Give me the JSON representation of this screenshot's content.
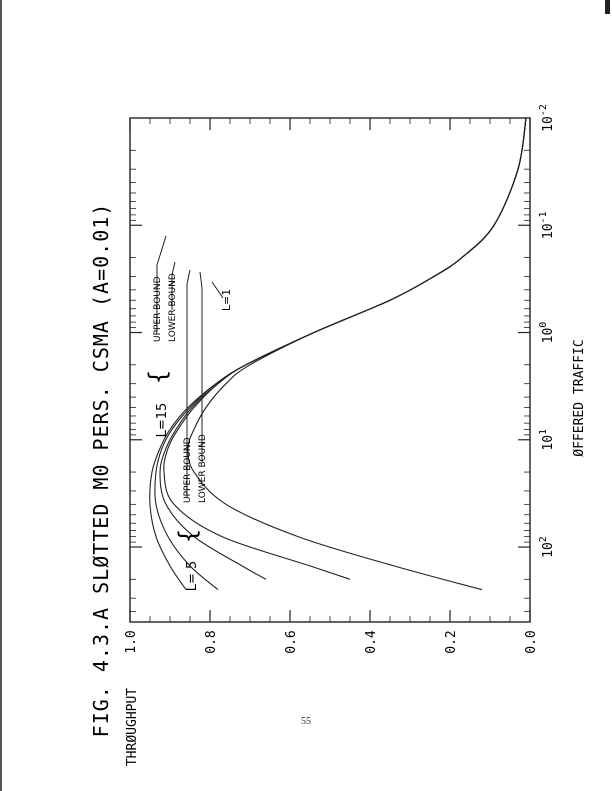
{
  "page": {
    "page_number": "55"
  },
  "chart_data": {
    "type": "line",
    "title": "FIG. 4.3.A SLØTTED M0 PERS. CSMA (A=0.01)",
    "xlabel": "ØFFERED TRAFFIC",
    "ylabel": "THRØUGHPUT",
    "x_scale": "log",
    "xlim": [
      0.01,
      500
    ],
    "ylim": [
      0,
      1.0
    ],
    "x_ticks": [
      {
        "value": 0.01,
        "base": "10",
        "exp": "-2"
      },
      {
        "value": 0.1,
        "base": "10",
        "exp": "-1"
      },
      {
        "value": 1,
        "base": "10",
        "exp": "0"
      },
      {
        "value": 10,
        "base": "10",
        "exp": "1"
      },
      {
        "value": 100,
        "base": "10",
        "exp": "2"
      }
    ],
    "y_ticks": [
      {
        "value": 0.0,
        "label": "0.0"
      },
      {
        "value": 0.2,
        "label": "0.2"
      },
      {
        "value": 0.4,
        "label": "0.4"
      },
      {
        "value": 0.6,
        "label": "0.6"
      },
      {
        "value": 0.8,
        "label": "0.8"
      },
      {
        "value": 1.0,
        "label": "1.0"
      }
    ],
    "series": [
      {
        "x": [
          0.01,
          0.03,
          0.1,
          0.2,
          0.3,
          0.5,
          1,
          2,
          3,
          5,
          8,
          12,
          20,
          40,
          80,
          150,
          250
        ],
        "y": [
          0.01,
          0.03,
          0.09,
          0.17,
          0.24,
          0.35,
          0.54,
          0.7,
          0.76,
          0.81,
          0.84,
          0.855,
          0.84,
          0.76,
          0.58,
          0.34,
          0.12
        ]
      },
      {
        "x": [
          0.01,
          0.03,
          0.1,
          0.2,
          0.3,
          0.5,
          1,
          2,
          3,
          5,
          8,
          12,
          20,
          40,
          80,
          150,
          200
        ],
        "y": [
          0.01,
          0.03,
          0.09,
          0.17,
          0.24,
          0.35,
          0.54,
          0.71,
          0.78,
          0.84,
          0.88,
          0.905,
          0.915,
          0.89,
          0.77,
          0.55,
          0.45
        ]
      },
      {
        "x": [
          0.01,
          0.03,
          0.1,
          0.2,
          0.3,
          0.5,
          1,
          2,
          3,
          5,
          8,
          12,
          20,
          40,
          80,
          150,
          200
        ],
        "y": [
          0.01,
          0.03,
          0.09,
          0.17,
          0.24,
          0.35,
          0.54,
          0.71,
          0.78,
          0.845,
          0.885,
          0.91,
          0.925,
          0.91,
          0.84,
          0.72,
          0.66
        ]
      },
      {
        "x": [
          0.01,
          0.03,
          0.1,
          0.2,
          0.3,
          0.5,
          1,
          2,
          3,
          5,
          8,
          12,
          20,
          40,
          80,
          150,
          250
        ],
        "y": [
          0.01,
          0.03,
          0.09,
          0.17,
          0.24,
          0.35,
          0.54,
          0.71,
          0.785,
          0.85,
          0.895,
          0.92,
          0.935,
          0.935,
          0.905,
          0.85,
          0.78
        ]
      },
      {
        "x": [
          0.01,
          0.03,
          0.1,
          0.2,
          0.3,
          0.5,
          1,
          2,
          3,
          5,
          8,
          12,
          20,
          40,
          80,
          150,
          250
        ],
        "y": [
          0.01,
          0.03,
          0.09,
          0.17,
          0.24,
          0.35,
          0.54,
          0.71,
          0.785,
          0.855,
          0.9,
          0.925,
          0.945,
          0.95,
          0.935,
          0.9,
          0.86
        ]
      }
    ],
    "annotations": {
      "l1": "L=1",
      "l5": "L= 5",
      "l15": "L=15",
      "upper": "UPPER BOUND",
      "lower": "LOWER BOUND"
    }
  }
}
